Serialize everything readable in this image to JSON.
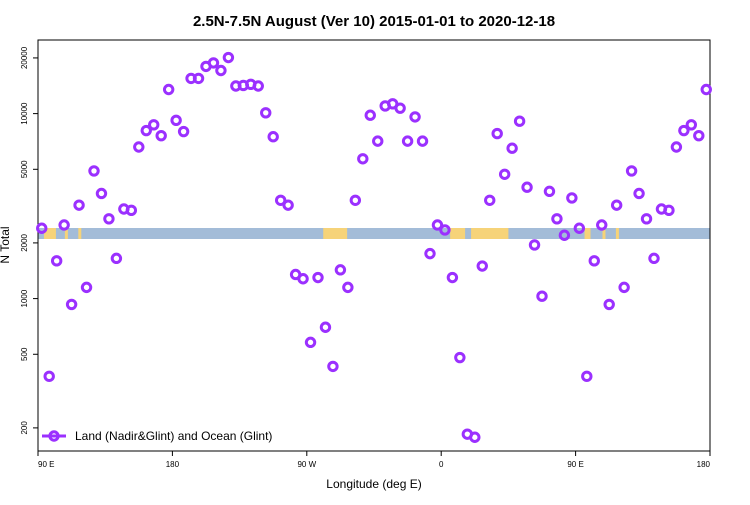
{
  "chart_data": {
    "type": "scatter",
    "title": "2.5N-7.5N August (Ver 10)   2015-01-01 to 2020-12-18",
    "xlabel": "Longitude (deg E)",
    "ylabel": "N Total",
    "x_scale": "linear",
    "y_scale": "log",
    "xlim": [
      90,
      540
    ],
    "ylim": [
      150,
      25000
    ],
    "xticks": [
      {
        "value": 90,
        "label": "90 E"
      },
      {
        "value": 180,
        "label": "180"
      },
      {
        "value": 270,
        "label": "90 W"
      },
      {
        "value": 360,
        "label": "0"
      },
      {
        "value": 450,
        "label": "90 E"
      },
      {
        "value": 540,
        "label": "180"
      }
    ],
    "yticks": [
      {
        "value": 200,
        "label": "200"
      },
      {
        "value": 500,
        "label": "500"
      },
      {
        "value": 1000,
        "label": "1000"
      },
      {
        "value": 2000,
        "label": "2000"
      },
      {
        "value": 5000,
        "label": "5000"
      },
      {
        "value": 10000,
        "label": "10000"
      },
      {
        "value": 20000,
        "label": "20000"
      }
    ],
    "legend": {
      "position": "bottom-left"
    },
    "series": [
      {
        "name": "Land (Nadir&Glint) and Ocean (Glint)",
        "color": "#9b30ff",
        "x": [
          92.5,
          97.5,
          102.5,
          107.5,
          112.5,
          117.5,
          122.5,
          127.5,
          132.5,
          137.5,
          142.5,
          147.5,
          152.5,
          157.5,
          162.5,
          167.5,
          172.5,
          177.5,
          182.5,
          187.5,
          192.5,
          197.5,
          202.5,
          207.5,
          212.5,
          217.5,
          222.5,
          227.5,
          232.5,
          237.5,
          242.5,
          247.5,
          252.5,
          257.5,
          262.5,
          267.5,
          272.5,
          277.5,
          282.5,
          287.5,
          292.5,
          297.5,
          302.5,
          307.5,
          312.5,
          317.5,
          322.5,
          327.5,
          332.5,
          337.5,
          342.5,
          347.5,
          352.5,
          357.5,
          362.5,
          367.5,
          372.5,
          377.5,
          382.5,
          387.5,
          392.5,
          397.5,
          402.5,
          407.5,
          412.5,
          417.5,
          422.5,
          427.5,
          432.5,
          437.5,
          442.5,
          447.5,
          452.5,
          457.5,
          462.5,
          467.5,
          472.5,
          477.5,
          482.5,
          487.5,
          492.5,
          497.5,
          502.5,
          507.5,
          512.5,
          517.5,
          522.5,
          527.5,
          532.5,
          537.5
        ],
        "y": [
          2400,
          380,
          1600,
          2500,
          930,
          3200,
          1150,
          4900,
          3700,
          2700,
          1650,
          3050,
          3000,
          6600,
          8100,
          8700,
          7600,
          13500,
          9200,
          8000,
          15500,
          15500,
          18000,
          18800,
          17100,
          20100,
          14100,
          14200,
          14400,
          14100,
          10100,
          7500,
          3400,
          3200,
          1350,
          1280,
          580,
          1300,
          700,
          430,
          1430,
          1150,
          3400,
          5700,
          9800,
          7100,
          11000,
          11300,
          10700,
          7100,
          9600,
          7100,
          1750,
          2500,
          2350,
          1300,
          480,
          185,
          178,
          1500,
          3400,
          7800,
          4700,
          6500,
          9100,
          4000,
          1950,
          1030,
          3800,
          2700,
          2200,
          3500,
          2400,
          380,
          1600,
          2500,
          930,
          3200,
          1150,
          4900,
          3700,
          2700,
          1650,
          3050,
          3000,
          6600,
          8100,
          8700,
          7600,
          13500
        ]
      }
    ]
  }
}
